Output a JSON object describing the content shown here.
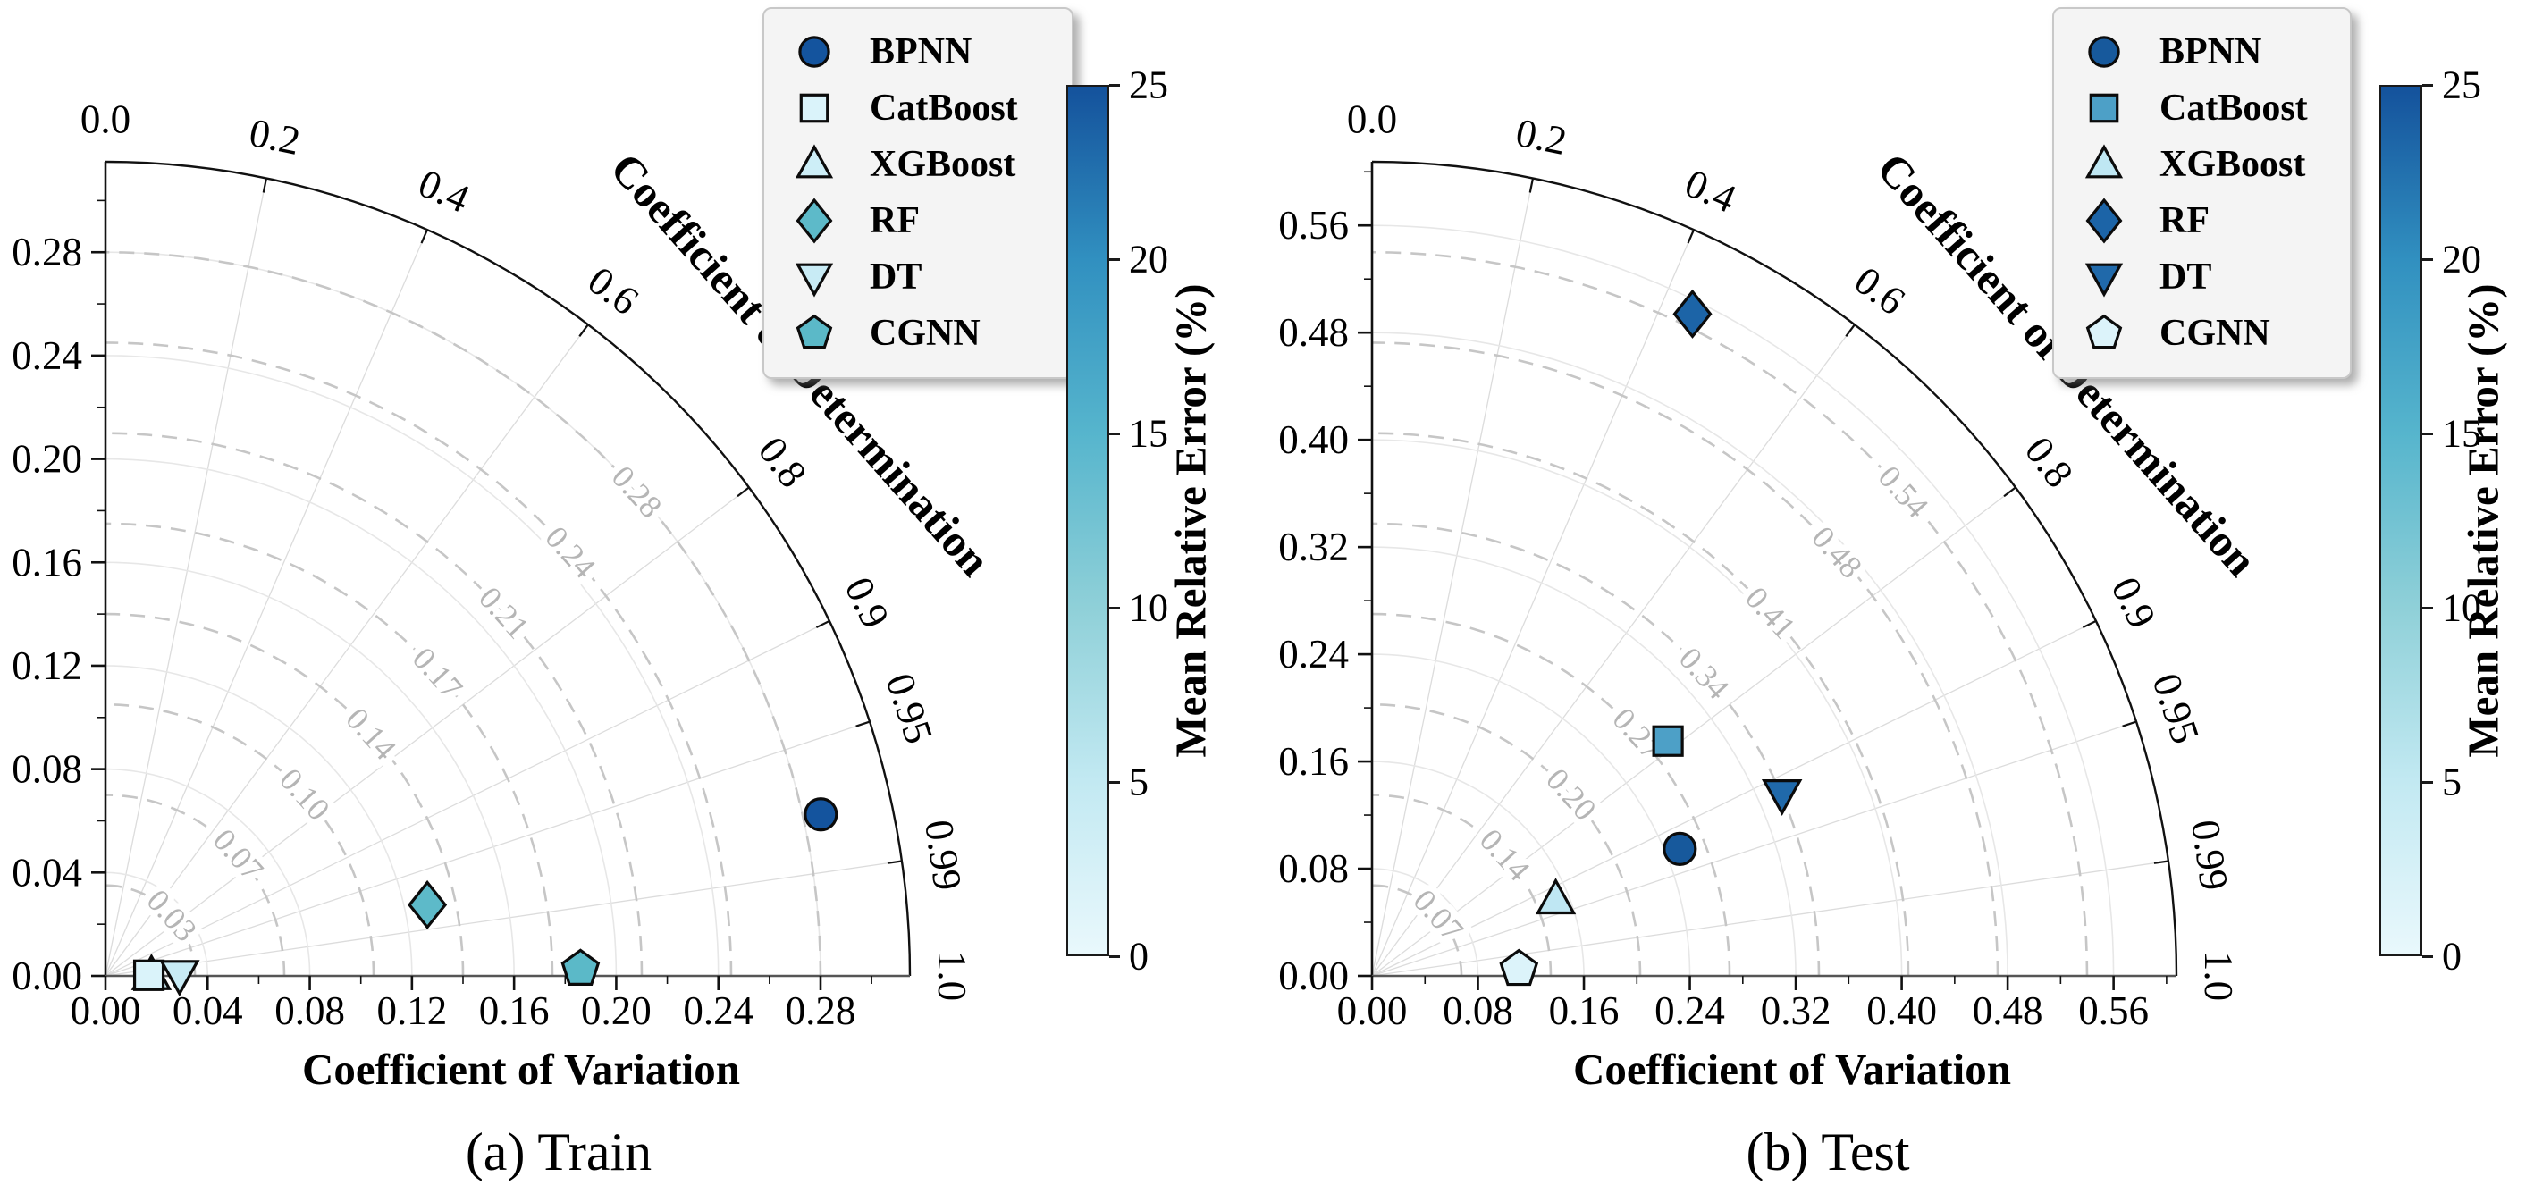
{
  "figure": {
    "captions": {
      "a": "(a) Train",
      "b": "(b) Test"
    }
  },
  "legend": {
    "items": [
      "BPNN",
      "CatBoost",
      "XGBoost",
      "RF",
      "DT",
      "CGNN"
    ]
  },
  "colorbar": {
    "label": "Mean Relative Error (%)",
    "min": 0,
    "max": 25,
    "ticks": [
      0,
      5,
      10,
      15,
      20,
      25
    ],
    "gradient": [
      {
        "stop": 0.0,
        "color": "#e9f8fc"
      },
      {
        "stop": 0.2,
        "color": "#c2e9f2"
      },
      {
        "stop": 0.4,
        "color": "#8fd0d8"
      },
      {
        "stop": 0.6,
        "color": "#56b5cd"
      },
      {
        "stop": 0.8,
        "color": "#3190c0"
      },
      {
        "stop": 1.0,
        "color": "#14529c"
      }
    ]
  },
  "chart_data": [
    {
      "type": "scatter",
      "variant": "taylor-quarter-polar",
      "title": "(a) Train",
      "xlabel": "Coefficient of Variation",
      "ylabel": "Coefficient of Variation",
      "angular_label": "Coefficient of Determination",
      "angular_mapping": "theta = arccos(R2)",
      "radial_max": 0.315,
      "radial_tick_step": 0.04,
      "radial_minor_step": 0.02,
      "radial_ticks": [
        0.0,
        0.04,
        0.08,
        0.12,
        0.16,
        0.2,
        0.24,
        0.28
      ],
      "angular_ticks": [
        {
          "label": "0.0",
          "value": 0.0
        },
        {
          "label": "0.2",
          "value": 0.2
        },
        {
          "label": "0.4",
          "value": 0.4
        },
        {
          "label": "0.6",
          "value": 0.6
        },
        {
          "label": "0.8",
          "value": 0.8
        },
        {
          "label": "0.9",
          "value": 0.9
        },
        {
          "label": "0.95",
          "value": 0.95
        },
        {
          "label": "0.99",
          "value": 0.99
        },
        {
          "label": "1.0",
          "value": 1.0
        }
      ],
      "dashed_arcs": [
        {
          "r": 0.035,
          "label": "0.03"
        },
        {
          "r": 0.07,
          "label": "0.07"
        },
        {
          "r": 0.105,
          "label": "0.10"
        },
        {
          "r": 0.14,
          "label": "0.14"
        },
        {
          "r": 0.175,
          "label": "0.17"
        },
        {
          "r": 0.21,
          "label": "0.21"
        },
        {
          "r": 0.245,
          "label": "0.24"
        },
        {
          "r": 0.28,
          "label": "0.28"
        }
      ],
      "series": [
        {
          "name": "XGBoost",
          "marker": "triangle-up",
          "cv": 0.018,
          "r2": 0.9999,
          "mre": 3,
          "color": "#cdeef7"
        },
        {
          "name": "CatBoost",
          "marker": "square",
          "cv": 0.017,
          "r2": 0.9999,
          "mre": 2,
          "color": "#daf3fa"
        },
        {
          "name": "DT",
          "marker": "triangle-down",
          "cv": 0.029,
          "r2": 0.9999,
          "mre": 3,
          "color": "#c8ebf5"
        },
        {
          "name": "RF",
          "marker": "diamond",
          "cv": 0.129,
          "r2": 0.977,
          "mre": 13,
          "color": "#5dbac9"
        },
        {
          "name": "CGNN",
          "marker": "pentagon",
          "cv": 0.186,
          "r2": 0.9999,
          "mre": 13,
          "color": "#5bb9c8"
        },
        {
          "name": "BPNN",
          "marker": "circle",
          "cv": 0.287,
          "r2": 0.976,
          "mre": 25,
          "color": "#14549e"
        }
      ]
    },
    {
      "type": "scatter",
      "variant": "taylor-quarter-polar",
      "title": "(b) Test",
      "xlabel": "Coefficient of Variation",
      "ylabel": "Coefficient of Variation",
      "angular_label": "Coefficient of Determination",
      "angular_mapping": "theta = arccos(R2)",
      "radial_max": 0.6075,
      "radial_tick_step": 0.08,
      "radial_minor_step": 0.04,
      "radial_ticks": [
        0.0,
        0.08,
        0.16,
        0.24,
        0.32,
        0.4,
        0.48,
        0.56
      ],
      "angular_ticks": [
        {
          "label": "0.0",
          "value": 0.0
        },
        {
          "label": "0.2",
          "value": 0.2
        },
        {
          "label": "0.4",
          "value": 0.4
        },
        {
          "label": "0.6",
          "value": 0.6
        },
        {
          "label": "0.8",
          "value": 0.8
        },
        {
          "label": "0.9",
          "value": 0.9
        },
        {
          "label": "0.95",
          "value": 0.95
        },
        {
          "label": "0.99",
          "value": 0.99
        },
        {
          "label": "1.0",
          "value": 1.0
        }
      ],
      "dashed_arcs": [
        {
          "r": 0.0675,
          "label": "0.07"
        },
        {
          "r": 0.135,
          "label": "0.14"
        },
        {
          "r": 0.2025,
          "label": "0.20"
        },
        {
          "r": 0.27,
          "label": "0.27"
        },
        {
          "r": 0.3375,
          "label": "0.34"
        },
        {
          "r": 0.405,
          "label": "0.41"
        },
        {
          "r": 0.4725,
          "label": "0.48"
        },
        {
          "r": 0.54,
          "label": "0.54"
        }
      ],
      "series": [
        {
          "name": "CGNN",
          "marker": "pentagon",
          "cv": 0.111,
          "r2": 0.999,
          "mre": 2,
          "color": "#dcf3fa"
        },
        {
          "name": "XGBoost",
          "marker": "triangle-up",
          "cv": 0.15,
          "r2": 0.925,
          "mre": 5,
          "color": "#bfe7f3"
        },
        {
          "name": "BPNN",
          "marker": "circle",
          "cv": 0.251,
          "r2": 0.926,
          "mre": 24,
          "color": "#17599c"
        },
        {
          "name": "CatBoost",
          "marker": "square",
          "cv": 0.284,
          "r2": 0.787,
          "mre": 17,
          "color": "#4da0c7"
        },
        {
          "name": "DT",
          "marker": "triangle-down",
          "cv": 0.338,
          "r2": 0.916,
          "mre": 21,
          "color": "#2069aa"
        },
        {
          "name": "RF",
          "marker": "diamond",
          "cv": 0.55,
          "r2": 0.44,
          "mre": 22,
          "color": "#1c64a7"
        }
      ]
    }
  ]
}
